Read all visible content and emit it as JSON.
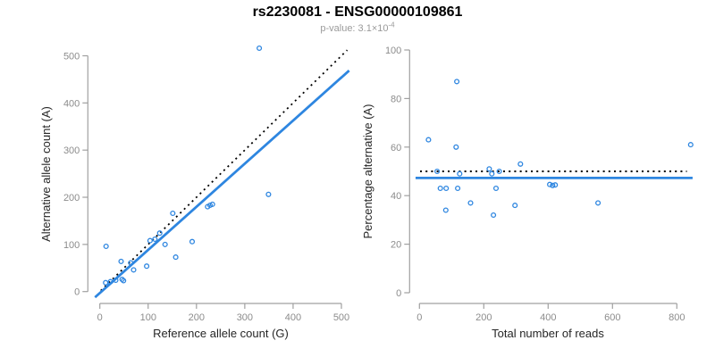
{
  "header": {
    "title": "rs2230081 - ENSG00000109861",
    "subtitle_prefix": "p-value: 3.1×10",
    "subtitle_exponent": "-4"
  },
  "colors": {
    "accent_blue": "#2E86E0",
    "dotted_black": "#000000",
    "axis_line_gray": "#a0a0a0",
    "tick_label_gray": "#8c8c8c",
    "axis_title_dark": "#262626",
    "subtitle_gray": "#9a9a9a"
  },
  "chart_data": [
    {
      "type": "scatter",
      "name": "allele-counts-scatter",
      "xlabel": "Reference allele count (G)",
      "ylabel": "Alternative allele count (A)",
      "xlim": [
        0,
        500
      ],
      "ylim": [
        0,
        500
      ],
      "xticks": [
        0,
        100,
        200,
        300,
        400,
        500
      ],
      "yticks": [
        0,
        100,
        200,
        300,
        400,
        500
      ],
      "grid": false,
      "marker": "open-circle",
      "points": [
        [
          12,
          19
        ],
        [
          22,
          21
        ],
        [
          33,
          24
        ],
        [
          46,
          26
        ],
        [
          49,
          23
        ],
        [
          13,
          96
        ],
        [
          44,
          64
        ],
        [
          64,
          61
        ],
        [
          70,
          46
        ],
        [
          97,
          54
        ],
        [
          104,
          108
        ],
        [
          114,
          111
        ],
        [
          124,
          124
        ],
        [
          135,
          100
        ],
        [
          151,
          166
        ],
        [
          157,
          73
        ],
        [
          191,
          106
        ],
        [
          223,
          180
        ],
        [
          228,
          183
        ],
        [
          233,
          185
        ],
        [
          349,
          206
        ],
        [
          330,
          516
        ]
      ],
      "lines": [
        {
          "name": "50-percent-identity-line",
          "style": "dotted",
          "color": "#000000",
          "width": 1.8,
          "slope": 1,
          "intercept": 0,
          "x_range": [
            2,
            512
          ]
        },
        {
          "name": "fitted-line",
          "style": "solid",
          "color": "#2E86E0",
          "width": 2.8,
          "slope": 0.914,
          "intercept": -3,
          "x_range": [
            -10,
            516
          ]
        }
      ]
    },
    {
      "type": "scatter",
      "name": "percentage-vs-coverage-scatter",
      "xlabel": "Total number of reads",
      "ylabel": "Percentage alternative (A)",
      "xlim": [
        0,
        800
      ],
      "ylim": [
        0,
        100
      ],
      "xticks": [
        0,
        200,
        400,
        600,
        800
      ],
      "yticks": [
        0,
        20,
        40,
        60,
        80,
        100
      ],
      "grid": false,
      "marker": "open-circle",
      "points": [
        [
          28,
          63
        ],
        [
          55,
          50
        ],
        [
          65,
          43
        ],
        [
          82,
          34
        ],
        [
          83,
          43
        ],
        [
          116,
          87
        ],
        [
          114,
          60
        ],
        [
          119,
          43
        ],
        [
          125,
          49
        ],
        [
          159,
          37
        ],
        [
          217,
          51
        ],
        [
          225,
          49
        ],
        [
          238,
          43
        ],
        [
          230,
          32
        ],
        [
          248,
          50
        ],
        [
          297,
          36
        ],
        [
          314,
          53
        ],
        [
          405,
          44.6
        ],
        [
          414,
          44.2
        ],
        [
          422,
          44.4
        ],
        [
          555,
          37
        ],
        [
          843,
          61
        ]
      ],
      "lines": [
        {
          "name": "50-percent-reference-line",
          "style": "dotted",
          "color": "#000000",
          "width": 2,
          "slope": 0,
          "intercept": 50,
          "x_range": [
            2,
            831
          ]
        },
        {
          "name": "fitted-percentage-line",
          "style": "solid",
          "color": "#2E86E0",
          "width": 2.8,
          "slope": 0,
          "intercept": 47.3,
          "x_range": [
            -12,
            849
          ]
        }
      ]
    }
  ]
}
